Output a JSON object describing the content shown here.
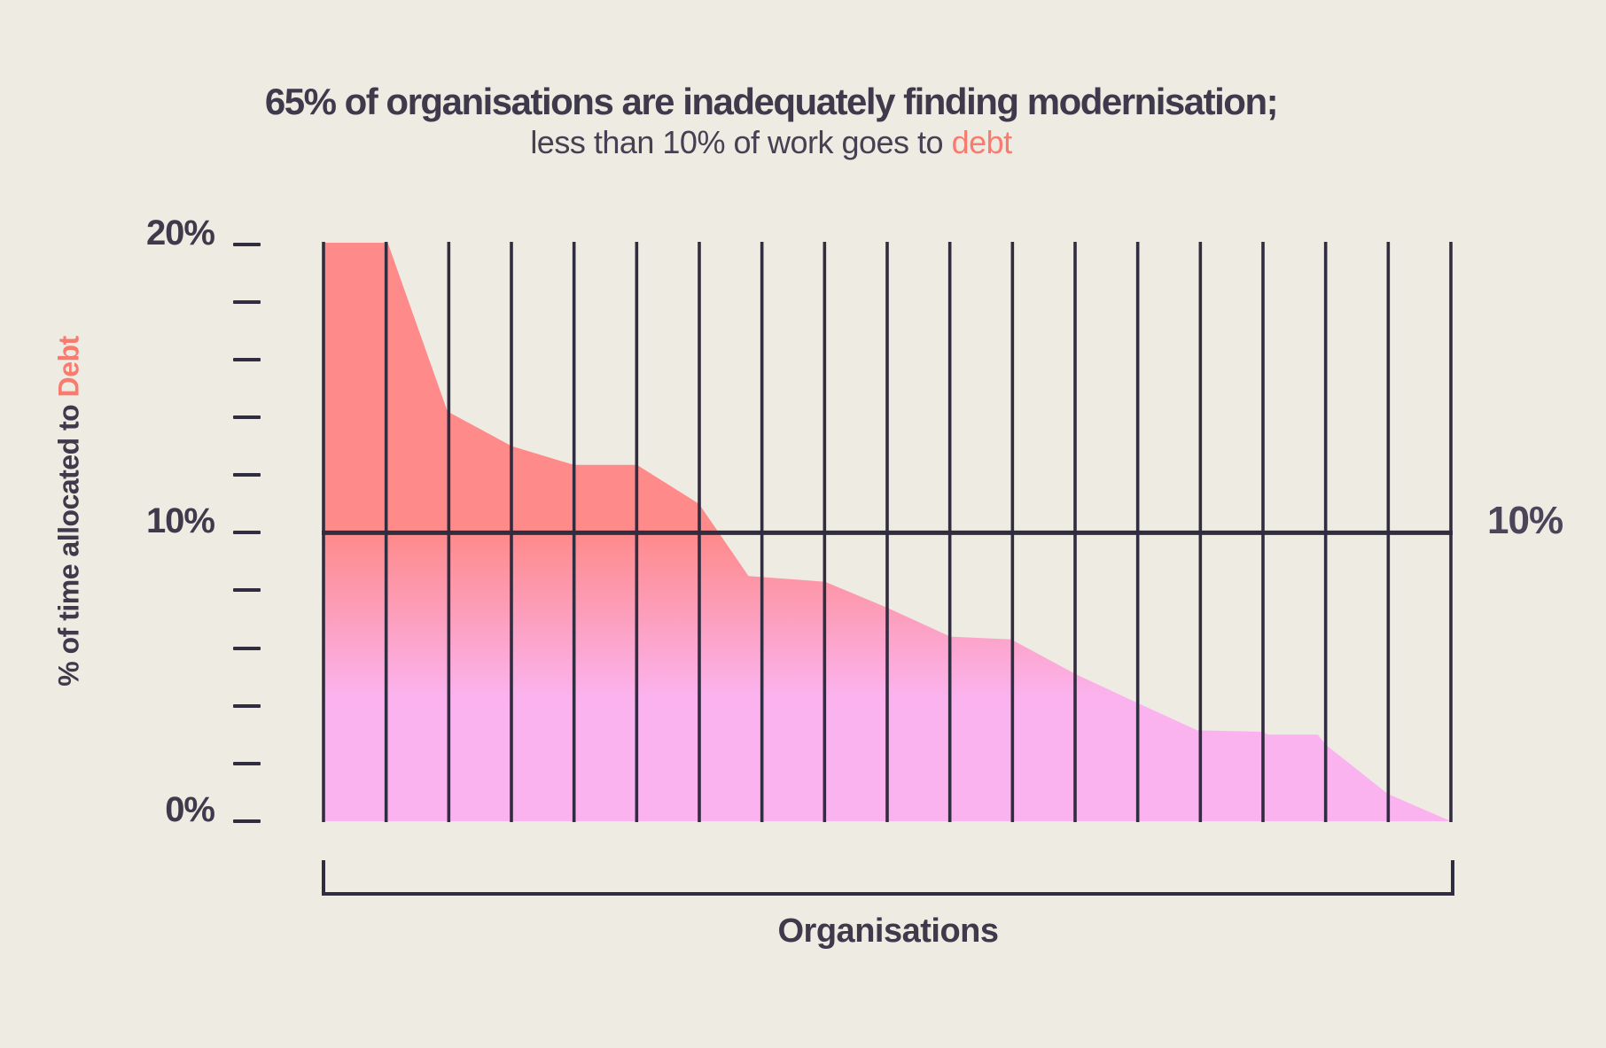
{
  "title": {
    "line1": "65% of organisations are inadequately finding modernisation;",
    "line2_prefix": "less than 10% of work goes to ",
    "line2_accent": "debt"
  },
  "y_axis": {
    "title_prefix": "% of time allocated to ",
    "title_accent": "Debt",
    "tick_labels": [
      {
        "value": 20,
        "label": "20%"
      },
      {
        "value": 10,
        "label": "10%"
      },
      {
        "value": 0,
        "label": "0%"
      }
    ]
  },
  "x_axis": {
    "title": "Organisations"
  },
  "right_reference_label": "10%",
  "colors": {
    "background": "#EEEBE3",
    "ink": "#312D40",
    "text_dark": "#3E3A4B",
    "accent_coral": "#F87B6E",
    "area_top_coral": "#FE8A8A",
    "area_bottom_pink": "#FBB3EF",
    "gradient_stops": [
      [
        0.0,
        "#FE8A8A"
      ],
      [
        0.5,
        "#FE8A8A"
      ],
      [
        0.79,
        "#FBB3EF"
      ],
      [
        1.0,
        "#FBB3EF"
      ]
    ]
  },
  "chart_data": {
    "type": "area",
    "title": "65% of organisations are inadequately finding modernisation; less than 10% of work goes to debt",
    "xlabel": "Organisations",
    "ylabel": "% of time allocated to Debt",
    "ylim": [
      0,
      20.05
    ],
    "ytick_step_pct": 2,
    "labeled_yticks_pct": [
      20,
      10,
      0
    ],
    "reference_line_pct": 10,
    "n_vertical_gridlines": 19,
    "grid": "vertical column lines plus horizontal 10% reference line; no x tick labels (anonymous organisations)",
    "legend_position": "none",
    "series": [
      {
        "name": "% of time allocated to debt (sorted descending across organisations)",
        "x_as_fraction_of_width": true,
        "points": [
          [
            0.0,
            20.05
          ],
          [
            0.057,
            20.05
          ],
          [
            0.11,
            14.2
          ],
          [
            0.167,
            13.0
          ],
          [
            0.222,
            12.35
          ],
          [
            0.278,
            12.35
          ],
          [
            0.333,
            11.0
          ],
          [
            0.377,
            8.5
          ],
          [
            0.445,
            8.3
          ],
          [
            0.5,
            7.4
          ],
          [
            0.556,
            6.4
          ],
          [
            0.61,
            6.3
          ],
          [
            0.667,
            5.1
          ],
          [
            0.722,
            4.1
          ],
          [
            0.775,
            3.15
          ],
          [
            0.833,
            3.1
          ],
          [
            0.838,
            3.0
          ],
          [
            0.882,
            3.0
          ],
          [
            0.889,
            2.65
          ],
          [
            0.944,
            0.95
          ],
          [
            1.0,
            0.0
          ]
        ]
      }
    ]
  }
}
